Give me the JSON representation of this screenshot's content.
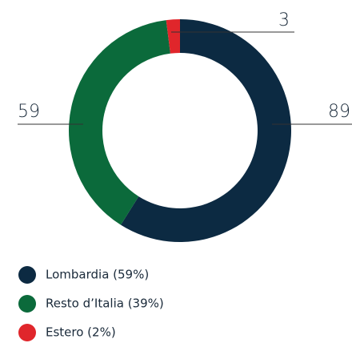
{
  "chart_data": {
    "type": "donut",
    "categories": [
      "Lombardia (59%)",
      "Resto d’Italia (39%)",
      "Estero (2%)"
    ],
    "values": [
      89,
      59,
      3
    ],
    "colors": [
      "#0c2a42",
      "#0b6a3b",
      "#e0262b"
    ]
  }
}
